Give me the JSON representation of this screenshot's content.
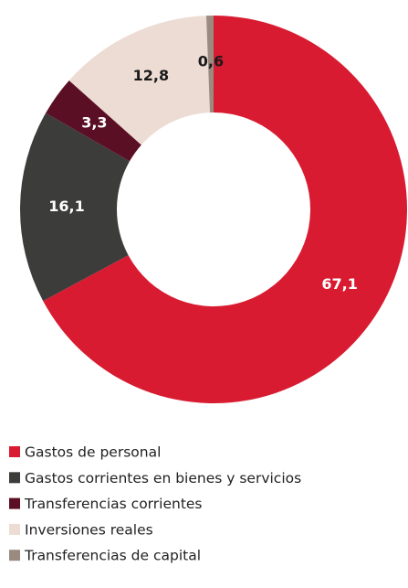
{
  "chart_data": {
    "type": "donut",
    "categories": [
      "Gastos de personal",
      "Gastos corrientes en bienes y servicios",
      "Transferencias corrientes",
      "Inversiones reales",
      "Transferencias de capital"
    ],
    "values": [
      67.1,
      16.1,
      3.3,
      12.8,
      0.6
    ],
    "value_labels": [
      "67,1",
      "16,1",
      "3,3",
      "12,8",
      "0,6"
    ],
    "colors": [
      "#d81b31",
      "#3c3c3b",
      "#5b0f24",
      "#eddcd3",
      "#9b8a7f"
    ],
    "label_colors": [
      "#ffffff",
      "#ffffff",
      "#ffffff",
      "#1a1a1a",
      "#1a1a1a"
    ],
    "legend": "bottom-left"
  }
}
